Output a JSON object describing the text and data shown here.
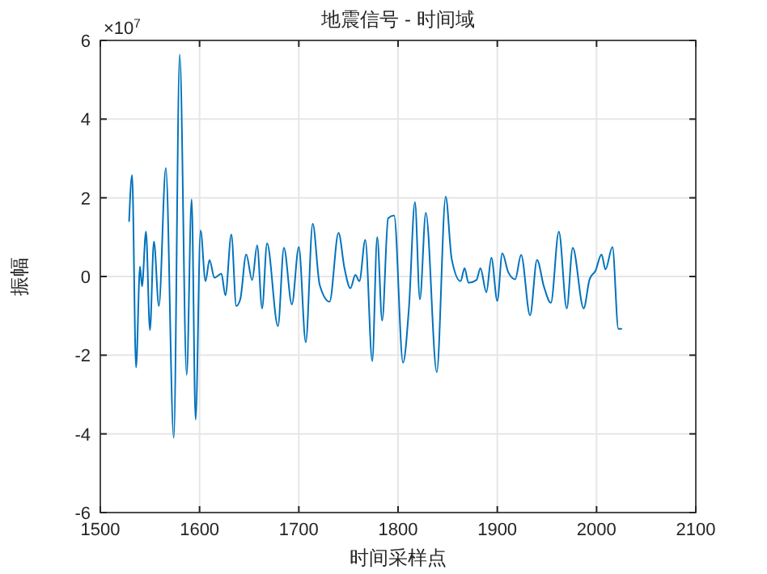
{
  "chart_data": {
    "type": "line",
    "title": "地震信号 - 时间域",
    "xlabel": "时间采样点",
    "ylabel": "振幅",
    "annotations": [
      "×10$^{7}$"
    ],
    "x": [
      1529,
      1532,
      1536,
      1540,
      1542,
      1546,
      1550,
      1554,
      1559,
      1566,
      1574,
      1580,
      1587,
      1592,
      1596,
      1601,
      1606,
      1610,
      1615,
      1622,
      1626,
      1632,
      1637,
      1641,
      1647,
      1653,
      1658,
      1663,
      1668,
      1679,
      1685,
      1693,
      1700,
      1707,
      1714,
      1721,
      1731,
      1740,
      1746,
      1752,
      1757,
      1761,
      1767,
      1774,
      1779,
      1784,
      1790,
      1796,
      1805,
      1811,
      1817,
      1822,
      1828,
      1839,
      1848,
      1854,
      1863,
      1867,
      1871,
      1879,
      1883,
      1889,
      1894,
      1900,
      1905,
      1911,
      1918,
      1924,
      1933,
      1940,
      1947,
      1954,
      1962,
      1970,
      1976,
      1987,
      1993,
      1999,
      2005,
      2009,
      2016,
      2022,
      2025
    ],
    "series": [
      {
        "color": "#0072bd",
        "values": [
          1.41,
          2.58,
          -2.31,
          0.25,
          -0.25,
          1.14,
          -1.36,
          0.89,
          -0.75,
          2.76,
          -4.1,
          5.64,
          -2.5,
          1.96,
          -3.64,
          1.17,
          -0.12,
          0.42,
          -0.03,
          0.07,
          -0.48,
          1.07,
          -0.75,
          -0.58,
          0.56,
          -0.09,
          0.79,
          -0.81,
          0.84,
          -1.26,
          0.73,
          -0.71,
          0.75,
          -1.67,
          1.34,
          -0.21,
          -0.64,
          1.11,
          0.21,
          -0.3,
          0.04,
          -0.12,
          0.93,
          -2.15,
          1.0,
          -1.12,
          1.48,
          1.55,
          -2.19,
          -0.78,
          1.89,
          -0.58,
          1.62,
          -2.43,
          2.03,
          0.45,
          -0.12,
          0.21,
          -0.16,
          -0.09,
          0.21,
          -0.4,
          0.48,
          -0.62,
          0.59,
          0.11,
          -0.07,
          0.55,
          -0.99,
          0.42,
          -0.26,
          -0.67,
          1.14,
          -0.81,
          0.73,
          -0.81,
          -0.07,
          0.15,
          0.56,
          0.18,
          0.75,
          -1.33,
          -1.33
        ]
      }
    ],
    "xlim": [
      1500,
      2100
    ],
    "ylim": [
      -6,
      6
    ],
    "xticks": [
      1500,
      1600,
      1700,
      1800,
      1900,
      2000,
      2100
    ],
    "yticks": [
      -6,
      -4,
      -2,
      0,
      2,
      4,
      6
    ],
    "grid": true,
    "line_style": "solid",
    "marker": "none"
  }
}
